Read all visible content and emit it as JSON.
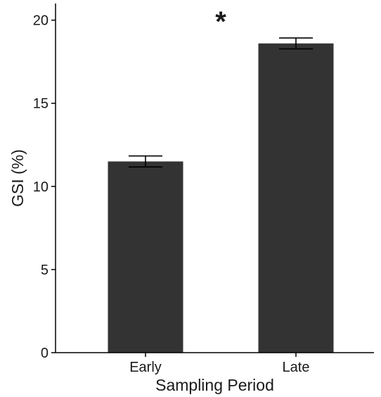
{
  "chart_data": {
    "type": "bar",
    "categories": [
      "Early",
      "Late"
    ],
    "values": [
      11.5,
      18.6
    ],
    "error": [
      0.33,
      0.33
    ],
    "ylim": [
      0,
      21
    ],
    "yticks": [
      0,
      5,
      10,
      15,
      20
    ],
    "xlabel": "Sampling Period",
    "ylabel": "GSI (%)",
    "annotation": "*",
    "bar_color": "#333333",
    "grid": false
  }
}
